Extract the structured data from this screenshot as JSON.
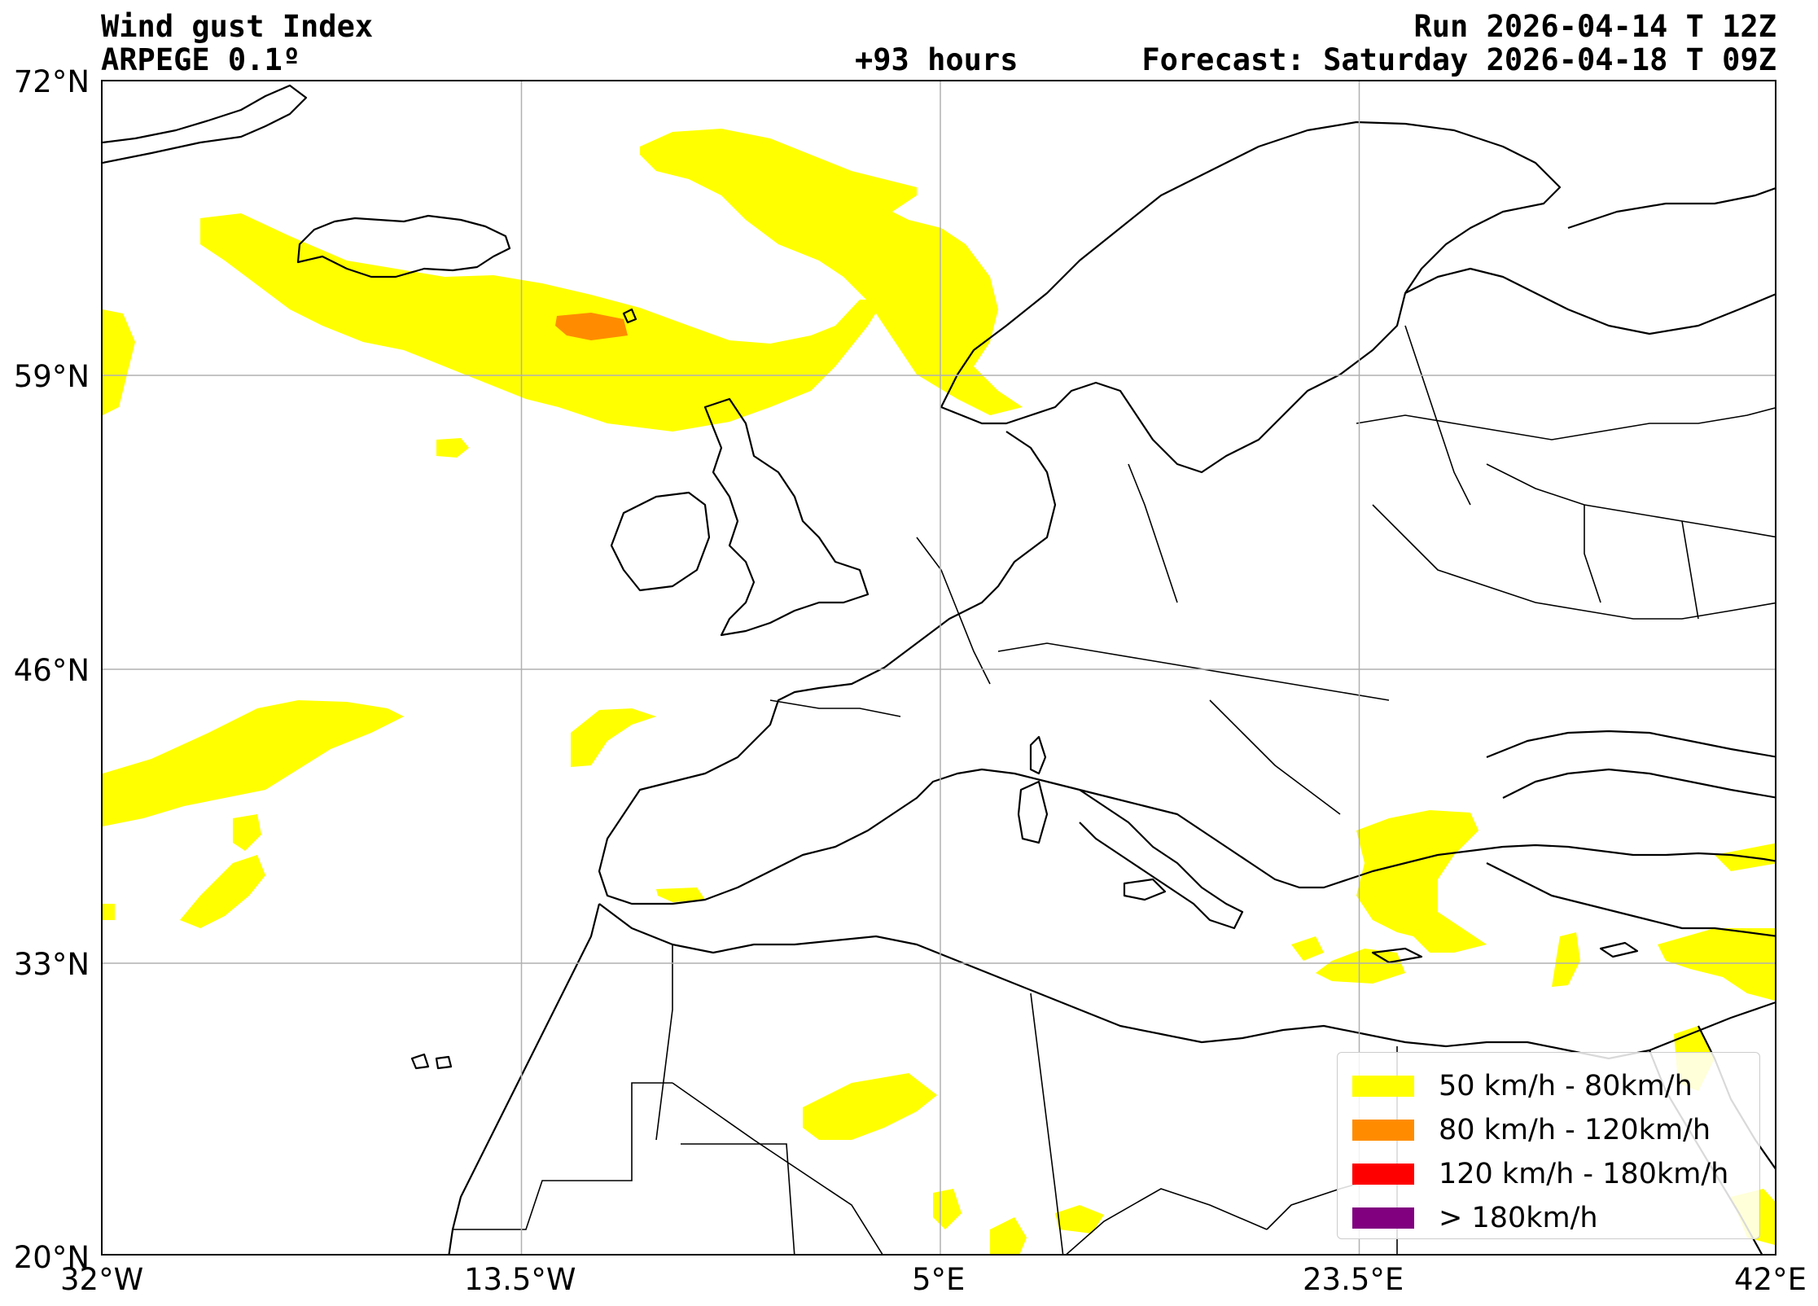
{
  "header": {
    "title": "Wind gust Index",
    "model": "ARPEGE 0.1º",
    "lead_time": "+93 hours",
    "run": "Run 2026-04-14 T 12Z",
    "forecast": "Forecast: Saturday 2026-04-18 T 09Z"
  },
  "axes": {
    "lat_ticks": [
      "72°N",
      "59°N",
      "46°N",
      "33°N",
      "20°N"
    ],
    "lon_ticks": [
      "32°W",
      "13.5°W",
      "5°E",
      "23.5°E",
      "42°E"
    ],
    "lon_range": [
      -32,
      42
    ],
    "lat_range": [
      20,
      72
    ],
    "grid": true
  },
  "legend": {
    "items": [
      {
        "label": "50 km/h - 80km/h",
        "color": "#ffff00"
      },
      {
        "label": "80 km/h - 120km/h",
        "color": "#ff8c00"
      },
      {
        "label": "120 km/h - 180km/h",
        "color": "#ff0000"
      },
      {
        "label": "> 180km/h",
        "color": "#800080"
      }
    ]
  },
  "colors": {
    "gust_50_80": "#ffff00",
    "gust_80_120": "#ff8c00",
    "coastline": "#000000",
    "gridline": "#b0b0b0"
  }
}
